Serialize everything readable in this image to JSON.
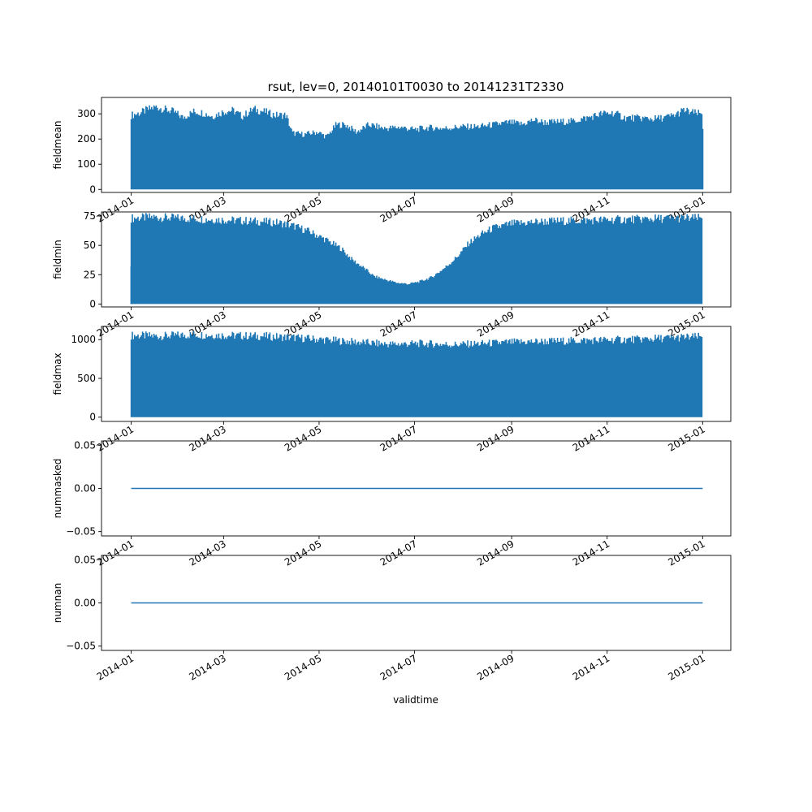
{
  "chart_data": {
    "type": "line",
    "title": "rsut, lev=0, 20140101T0030 to 20141231T2330",
    "xlabel": "validtime",
    "x_range": [
      "2014-01-01",
      "2015-01-01"
    ],
    "x_ticks": [
      "2014-01",
      "2014-03",
      "2014-05",
      "2014-07",
      "2014-09",
      "2014-11",
      "2015-01"
    ],
    "line_color": "#1f77b4",
    "grid": false,
    "panels": [
      {
        "ylabel": "fieldmean",
        "ylim": [
          -12,
          365
        ],
        "yticks": [
          "0",
          "100",
          "200",
          "300"
        ],
        "ytick_values": [
          0,
          100,
          200,
          300
        ],
        "envelope_min": 0,
        "envelope_max": [
          [
            "2014-01-01",
            310
          ],
          [
            "2014-01-07",
            320
          ],
          [
            "2014-01-12",
            335
          ],
          [
            "2014-01-17",
            345
          ],
          [
            "2014-01-22",
            335
          ],
          [
            "2014-01-28",
            325
          ],
          [
            "2014-02-03",
            300
          ],
          [
            "2014-02-10",
            325
          ],
          [
            "2014-02-16",
            320
          ],
          [
            "2014-02-22",
            305
          ],
          [
            "2014-03-01",
            325
          ],
          [
            "2014-03-07",
            330
          ],
          [
            "2014-03-13",
            305
          ],
          [
            "2014-03-20",
            335
          ],
          [
            "2014-03-27",
            325
          ],
          [
            "2014-04-03",
            310
          ],
          [
            "2014-04-10",
            310
          ],
          [
            "2014-04-14",
            235
          ],
          [
            "2014-04-22",
            230
          ],
          [
            "2014-04-30",
            240
          ],
          [
            "2014-05-06",
            220
          ],
          [
            "2014-05-12",
            270
          ],
          [
            "2014-05-18",
            270
          ],
          [
            "2014-05-25",
            240
          ],
          [
            "2014-06-02",
            270
          ],
          [
            "2014-06-12",
            255
          ],
          [
            "2014-06-22",
            260
          ],
          [
            "2014-07-01",
            250
          ],
          [
            "2014-07-10",
            258
          ],
          [
            "2014-07-20",
            255
          ],
          [
            "2014-07-31",
            262
          ],
          [
            "2014-08-10",
            262
          ],
          [
            "2014-08-20",
            270
          ],
          [
            "2014-08-31",
            280
          ],
          [
            "2014-09-08",
            272
          ],
          [
            "2014-09-15",
            290
          ],
          [
            "2014-09-22",
            280
          ],
          [
            "2014-10-01",
            282
          ],
          [
            "2014-10-10",
            285
          ],
          [
            "2014-10-20",
            300
          ],
          [
            "2014-10-28",
            315
          ],
          [
            "2014-11-05",
            320
          ],
          [
            "2014-11-12",
            300
          ],
          [
            "2014-11-22",
            298
          ],
          [
            "2014-12-01",
            295
          ],
          [
            "2014-12-08",
            300
          ],
          [
            "2014-12-14",
            310
          ],
          [
            "2014-12-20",
            330
          ],
          [
            "2014-12-26",
            320
          ],
          [
            "2014-12-31",
            315
          ]
        ],
        "last_value": 240
      },
      {
        "ylabel": "fieldmin",
        "ylim": [
          -2.5,
          78.5
        ],
        "yticks": [
          "0",
          "25",
          "50",
          "75"
        ],
        "ytick_values": [
          0,
          25,
          50,
          75
        ],
        "envelope_min": 0,
        "first_value": 32,
        "envelope_max": [
          [
            "2014-01-01",
            77
          ],
          [
            "2014-01-15",
            78
          ],
          [
            "2014-02-01",
            77
          ],
          [
            "2014-02-20",
            76
          ],
          [
            "2014-03-10",
            75
          ],
          [
            "2014-03-25",
            74
          ],
          [
            "2014-04-05",
            73
          ],
          [
            "2014-04-15",
            70
          ],
          [
            "2014-04-25",
            65
          ],
          [
            "2014-05-05",
            58
          ],
          [
            "2014-05-15",
            50
          ],
          [
            "2014-05-22",
            40
          ],
          [
            "2014-05-30",
            32
          ],
          [
            "2014-06-05",
            25
          ],
          [
            "2014-06-12",
            22
          ],
          [
            "2014-06-20",
            19
          ],
          [
            "2014-06-27",
            18
          ],
          [
            "2014-07-04",
            20
          ],
          [
            "2014-07-12",
            24
          ],
          [
            "2014-07-20",
            32
          ],
          [
            "2014-07-28",
            42
          ],
          [
            "2014-08-05",
            55
          ],
          [
            "2014-08-12",
            62
          ],
          [
            "2014-08-20",
            68
          ],
          [
            "2014-09-01",
            72
          ],
          [
            "2014-09-20",
            74
          ],
          [
            "2014-10-15",
            75
          ],
          [
            "2014-11-15",
            76
          ],
          [
            "2014-12-15",
            77
          ],
          [
            "2014-12-31",
            77
          ]
        ]
      },
      {
        "ylabel": "fieldmax",
        "ylim": [
          -55,
          1170
        ],
        "yticks": [
          "0",
          "500",
          "1000"
        ],
        "ytick_values": [
          0,
          500,
          1000
        ],
        "envelope_min": 0,
        "envelope_max": [
          [
            "2014-01-01",
            1110
          ],
          [
            "2014-01-20",
            1100
          ],
          [
            "2014-02-10",
            1120
          ],
          [
            "2014-03-01",
            1110
          ],
          [
            "2014-03-25",
            1100
          ],
          [
            "2014-04-15",
            1080
          ],
          [
            "2014-05-05",
            1050
          ],
          [
            "2014-05-25",
            1020
          ],
          [
            "2014-06-15",
            990
          ],
          [
            "2014-07-05",
            1000
          ],
          [
            "2014-07-25",
            985
          ],
          [
            "2014-08-15",
            1000
          ],
          [
            "2014-09-05",
            1020
          ],
          [
            "2014-09-25",
            1030
          ],
          [
            "2014-10-15",
            1040
          ],
          [
            "2014-11-05",
            1050
          ],
          [
            "2014-11-25",
            1060
          ],
          [
            "2014-12-15",
            1080
          ],
          [
            "2014-12-31",
            1090
          ]
        ]
      },
      {
        "ylabel": "nummasked",
        "ylim": [
          -0.055,
          0.055
        ],
        "yticks": [
          "−0.05",
          "0.00",
          "0.05"
        ],
        "ytick_values": [
          -0.05,
          0,
          0.05
        ],
        "constant": 0
      },
      {
        "ylabel": "numnan",
        "ylim": [
          -0.055,
          0.055
        ],
        "yticks": [
          "−0.05",
          "0.00",
          "0.05"
        ],
        "ytick_values": [
          -0.05,
          0,
          0.05
        ],
        "constant": 0
      }
    ]
  }
}
